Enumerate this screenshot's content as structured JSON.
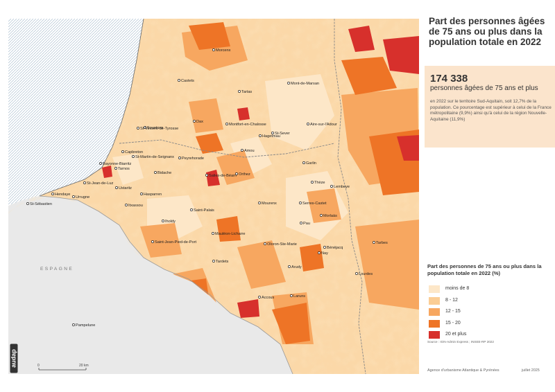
{
  "title": "Part des personnes âgées de 75 ans ou plus dans la population totale en 2022",
  "highlight": {
    "number": "174 338",
    "label": "personnes âgées de 75 ans et plus",
    "text": "en 2022 sur le territoire Sud-Aquitain, soit 12,7% de la population. Ce pourcentage est supérieur à celui de la France métropolitaine (9,9%) ainsi qu'à celui de la région Nouvelle-Aquitaine (11,9%)"
  },
  "legend": {
    "title": "Part des personnes de 75 ans ou plus dans la population totale en 2022 (%)",
    "classes": [
      {
        "label": "moins de 8",
        "color": "#fde7c8"
      },
      {
        "label": "8 - 12",
        "color": "#fbcd94"
      },
      {
        "label": "12 - 15",
        "color": "#f7a760"
      },
      {
        "label": "15 - 20",
        "color": "#ee7426"
      },
      {
        "label": "20 et plus",
        "color": "#d7302c"
      }
    ]
  },
  "map": {
    "country_label": "ESPAGNE",
    "scale": {
      "start": "0",
      "end": "20 km"
    },
    "towns": [
      {
        "name": "Morcenx"
      },
      {
        "name": "Castets"
      },
      {
        "name": "Tartas"
      },
      {
        "name": "Mont-de-Marsan"
      },
      {
        "name": "Soustons"
      },
      {
        "name": "Dax"
      },
      {
        "name": "St-Sever"
      },
      {
        "name": "St-Vincent-de-Tyrosse"
      },
      {
        "name": "Montfort-en-Chalosse"
      },
      {
        "name": "Capbreton"
      },
      {
        "name": "Hagetmau"
      },
      {
        "name": "Aire-sur-l'Adour"
      },
      {
        "name": "Amou"
      },
      {
        "name": "St-Martin-de-Seignanx"
      },
      {
        "name": "Peyrehorade"
      },
      {
        "name": "Bayonne-Biarritz"
      },
      {
        "name": "Tarnos"
      },
      {
        "name": "Garlin"
      },
      {
        "name": "Bidache"
      },
      {
        "name": "Salies-de-Béarn"
      },
      {
        "name": "Orthez"
      },
      {
        "name": "St-Jean-de-Luz"
      },
      {
        "name": "Thèze"
      },
      {
        "name": "Hendaye"
      },
      {
        "name": "Urrugne"
      },
      {
        "name": "Ustaritz"
      },
      {
        "name": "Hasparren"
      },
      {
        "name": "Lembeye"
      },
      {
        "name": "St-Sébastien"
      },
      {
        "name": "Itxassou"
      },
      {
        "name": "Mourenx"
      },
      {
        "name": "Serres-Castet"
      },
      {
        "name": "Saint-Palais"
      },
      {
        "name": "Morlaàs"
      },
      {
        "name": "Pau"
      },
      {
        "name": "Iholdy"
      },
      {
        "name": "Mauléon-Licharre"
      },
      {
        "name": "Tarbes"
      },
      {
        "name": "Saint-Jean-Pied-de-Port"
      },
      {
        "name": "Oloron-Ste-Marie"
      },
      {
        "name": "Bénéjacq"
      },
      {
        "name": "Nay"
      },
      {
        "name": "Tardets"
      },
      {
        "name": "Arudy"
      },
      {
        "name": "Lourdes"
      },
      {
        "name": "Accous"
      },
      {
        "name": "Laruns"
      },
      {
        "name": "Pampelune"
      }
    ]
  },
  "source": "Source : IGN-Admin Express ; INSEE-RP 2022",
  "footer": {
    "agency": "Agence d'urbanisme Atlantique & Pyrénées",
    "date": "juillet 2025"
  },
  "logo": "audap"
}
